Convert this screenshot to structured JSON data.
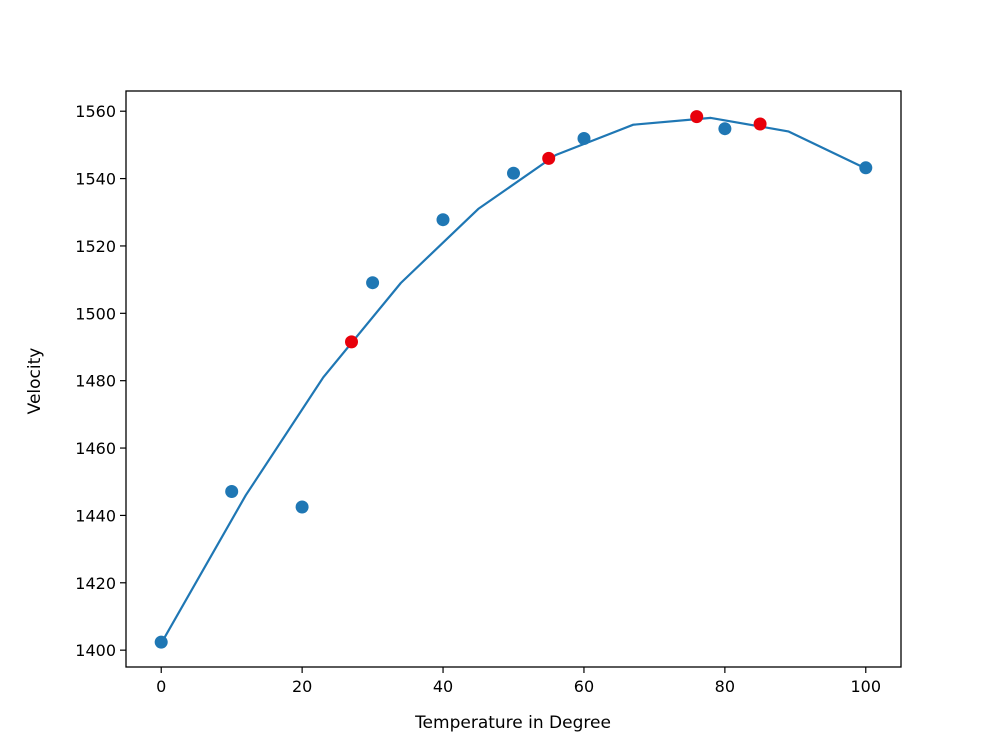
{
  "chart_data": {
    "type": "scatter",
    "xlabel": "Temperature in Degree",
    "ylabel": "Velocity",
    "xlim": [
      -5,
      105
    ],
    "ylim": [
      1395,
      1566
    ],
    "xticks": [
      0,
      20,
      40,
      60,
      80,
      100
    ],
    "yticks": [
      1400,
      1420,
      1440,
      1460,
      1480,
      1500,
      1520,
      1540,
      1560
    ],
    "grid": false,
    "series": [
      {
        "kind": "line",
        "color": "#1f77b4",
        "x": [
          0,
          12,
          23,
          34,
          45,
          56,
          67,
          78,
          89,
          100
        ],
        "y": [
          1402,
          1446,
          1481,
          1509,
          1531,
          1547,
          1556,
          1558,
          1554,
          1543
        ]
      },
      {
        "kind": "scatter",
        "color": "#1f77b4",
        "x": [
          0,
          10,
          20,
          30,
          40,
          50,
          60,
          80,
          100
        ],
        "y": [
          1402.4,
          1447.1,
          1442.5,
          1509.1,
          1527.8,
          1541.6,
          1551.9,
          1554.8,
          1543.2
        ]
      },
      {
        "kind": "scatter",
        "color": "#e8000b",
        "x": [
          27,
          55,
          76,
          85
        ],
        "y": [
          1491.5,
          1546.0,
          1558.4,
          1556.2
        ]
      }
    ]
  }
}
